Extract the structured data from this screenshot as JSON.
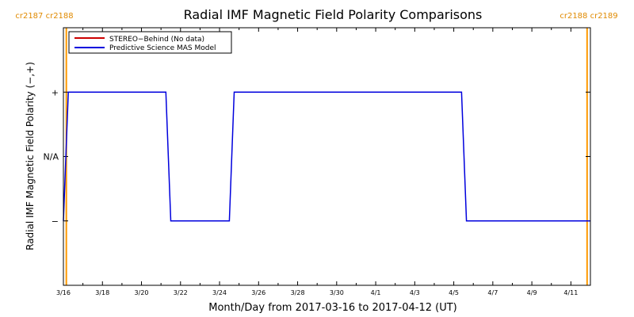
{
  "chart_data": {
    "type": "line",
    "title": "Radial IMF Magnetic Field Polarity Comparisons",
    "xlabel": "Month/Day from 2017-03-16 to 2017-04-12 (UT)",
    "ylabel": "Radial IMF Magnetic Field Polarity (−,+)",
    "x_tick_labels": [
      "3/16",
      "3/18",
      "3/20",
      "3/22",
      "3/24",
      "3/26",
      "3/28",
      "3/30",
      "4/1",
      "4/3",
      "4/5",
      "4/7",
      "4/9",
      "4/11"
    ],
    "x_tick_days": [
      0,
      2,
      4,
      6,
      8,
      10,
      12,
      14,
      16,
      18,
      20,
      22,
      24,
      26
    ],
    "xlim": [
      0,
      27
    ],
    "y_tick_labels": [
      "−",
      "N/A",
      "+"
    ],
    "y_tick_values": [
      -1,
      0,
      1
    ],
    "ylim": [
      -2,
      2
    ],
    "legend_position": "top-left",
    "carrington_markers": [
      {
        "day": 0.15,
        "label": "cr2187 cr2188",
        "side": "left"
      },
      {
        "day": 26.83,
        "label": "cr2188 cr2189",
        "side": "right"
      }
    ],
    "series": [
      {
        "name": "STEREO−Behind (No data)",
        "color": "#cc0000",
        "x": [],
        "y": []
      },
      {
        "name": "Predictive Science MAS Model",
        "color": "#0000dd",
        "x": [
          0.0,
          0.25,
          5.25,
          5.5,
          8.5,
          8.75,
          20.4,
          20.65,
          27.0
        ],
        "y": [
          -1,
          1,
          1,
          -1,
          -1,
          1,
          1,
          -1,
          -1
        ]
      }
    ]
  },
  "colors": {
    "carrington_line": "#ff9900",
    "carrington_text": "#e08a00",
    "axis": "#000000"
  }
}
